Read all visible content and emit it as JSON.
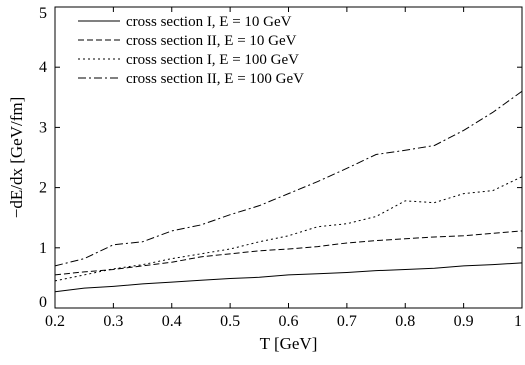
{
  "chart_data": {
    "type": "line",
    "xlabel": "T [GeV]",
    "ylabel": "−dE/dx [GeV/fm]",
    "xlim": [
      0.2,
      1.0
    ],
    "ylim": [
      0,
      5
    ],
    "xticks": [
      0.2,
      0.3,
      0.4,
      0.5,
      0.6,
      0.7,
      0.8,
      0.9,
      1.0
    ],
    "xtick_labels": [
      "0.2",
      "0.3",
      "0.4",
      "0.5",
      "0.6",
      "0.7",
      "0.8",
      "0.9",
      "1"
    ],
    "yticks": [
      0,
      1,
      2,
      3,
      4,
      5
    ],
    "ytick_labels": [
      "0",
      "1",
      "2",
      "3",
      "4",
      "5"
    ],
    "grid": false,
    "legend_position": "top-left",
    "series": [
      {
        "name": "cross section I, E = 10 GeV",
        "style": "solid",
        "x": [
          0.2,
          0.25,
          0.3,
          0.35,
          0.4,
          0.45,
          0.5,
          0.55,
          0.6,
          0.65,
          0.7,
          0.75,
          0.8,
          0.85,
          0.9,
          0.95,
          1.0
        ],
        "y": [
          0.27,
          0.33,
          0.36,
          0.4,
          0.43,
          0.46,
          0.49,
          0.51,
          0.55,
          0.57,
          0.59,
          0.62,
          0.64,
          0.66,
          0.7,
          0.72,
          0.75
        ]
      },
      {
        "name": "cross section II, E = 10 GeV",
        "style": "dashed",
        "x": [
          0.2,
          0.25,
          0.3,
          0.35,
          0.4,
          0.45,
          0.5,
          0.55,
          0.6,
          0.65,
          0.7,
          0.75,
          0.8,
          0.85,
          0.9,
          0.95,
          1.0
        ],
        "y": [
          0.55,
          0.6,
          0.64,
          0.7,
          0.76,
          0.85,
          0.9,
          0.95,
          0.98,
          1.02,
          1.08,
          1.12,
          1.15,
          1.18,
          1.2,
          1.24,
          1.28
        ]
      },
      {
        "name": "cross section I, E = 100 GeV",
        "style": "dotted",
        "x": [
          0.2,
          0.25,
          0.3,
          0.35,
          0.4,
          0.45,
          0.5,
          0.55,
          0.6,
          0.65,
          0.7,
          0.75,
          0.8,
          0.85,
          0.9,
          0.95,
          1.0
        ],
        "y": [
          0.45,
          0.55,
          0.65,
          0.72,
          0.82,
          0.9,
          0.98,
          1.1,
          1.2,
          1.35,
          1.4,
          1.52,
          1.78,
          1.75,
          1.9,
          1.95,
          2.18
        ]
      },
      {
        "name": "cross section II, E = 100 GeV",
        "style": "dashdot",
        "x": [
          0.2,
          0.25,
          0.3,
          0.35,
          0.4,
          0.45,
          0.5,
          0.55,
          0.6,
          0.65,
          0.7,
          0.75,
          0.8,
          0.85,
          0.9,
          0.95,
          1.0
        ],
        "y": [
          0.7,
          0.82,
          1.05,
          1.1,
          1.28,
          1.38,
          1.55,
          1.7,
          1.9,
          2.1,
          2.32,
          2.55,
          2.62,
          2.7,
          2.95,
          3.25,
          3.6
        ]
      }
    ]
  }
}
